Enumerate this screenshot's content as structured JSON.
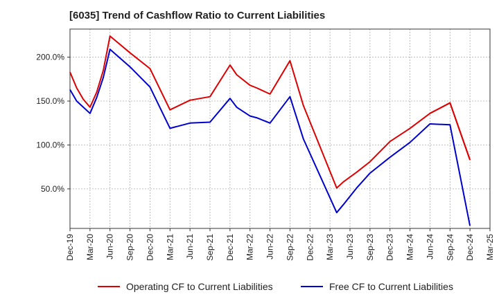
{
  "chart_data": {
    "type": "line",
    "title": "[6035]  Trend of Cashflow Ratio to Current Liabilities",
    "xlabel": "",
    "ylabel": "",
    "x_tick_labels": [
      "Dec-19",
      "Mar-20",
      "Jun-20",
      "Sep-20",
      "Dec-20",
      "Mar-21",
      "Jun-21",
      "Sep-21",
      "Dec-21",
      "Mar-22",
      "Jun-22",
      "Sep-22",
      "Dec-22",
      "Mar-23",
      "Jun-23",
      "Sep-23",
      "Dec-23",
      "Mar-24",
      "Jun-24",
      "Sep-24",
      "Dec-24",
      "Mar-25"
    ],
    "y_tick_labels": [
      "50.0%",
      "100.0%",
      "150.0%",
      "200.0%"
    ],
    "y_ticks": [
      50,
      100,
      150,
      200
    ],
    "ylim": [
      5,
      232
    ],
    "x_range_months": [
      0,
      63
    ],
    "grid": true,
    "legend_position": "bottom",
    "series": [
      {
        "name": "Operating CF to Current Liabilities",
        "color": "#dd0000",
        "x": [
          0,
          1,
          2,
          3,
          4,
          5,
          6,
          9,
          12,
          15,
          18,
          21,
          24,
          25,
          27,
          28,
          30,
          33,
          35,
          40,
          41,
          43,
          45,
          48,
          51,
          54,
          57,
          60
        ],
        "y": [
          183,
          165,
          152,
          143,
          160,
          185,
          224,
          205,
          187,
          140,
          151,
          155,
          191,
          180,
          168,
          165,
          158,
          196,
          145,
          51,
          58,
          69,
          81,
          104,
          119,
          136,
          148,
          83
        ]
      },
      {
        "name": "Free CF to Current Liabilities",
        "color": "#0000cc",
        "x": [
          0,
          1,
          2,
          3,
          4,
          5,
          6,
          9,
          12,
          15,
          18,
          21,
          24,
          25,
          27,
          28,
          30,
          33,
          35,
          40,
          41,
          43,
          45,
          48,
          51,
          54,
          57,
          60
        ],
        "y": [
          163,
          150,
          143,
          136,
          154,
          177,
          209,
          189,
          166,
          119,
          125,
          126,
          153,
          143,
          133,
          131,
          125,
          155,
          107,
          23,
          32,
          51,
          68,
          86,
          103,
          124,
          123,
          8
        ]
      },
      {
        "name": "",
        "color": "#dd0000",
        "x": [
          54,
          57,
          60
        ],
        "y": [
          136,
          148,
          83
        ]
      }
    ]
  }
}
